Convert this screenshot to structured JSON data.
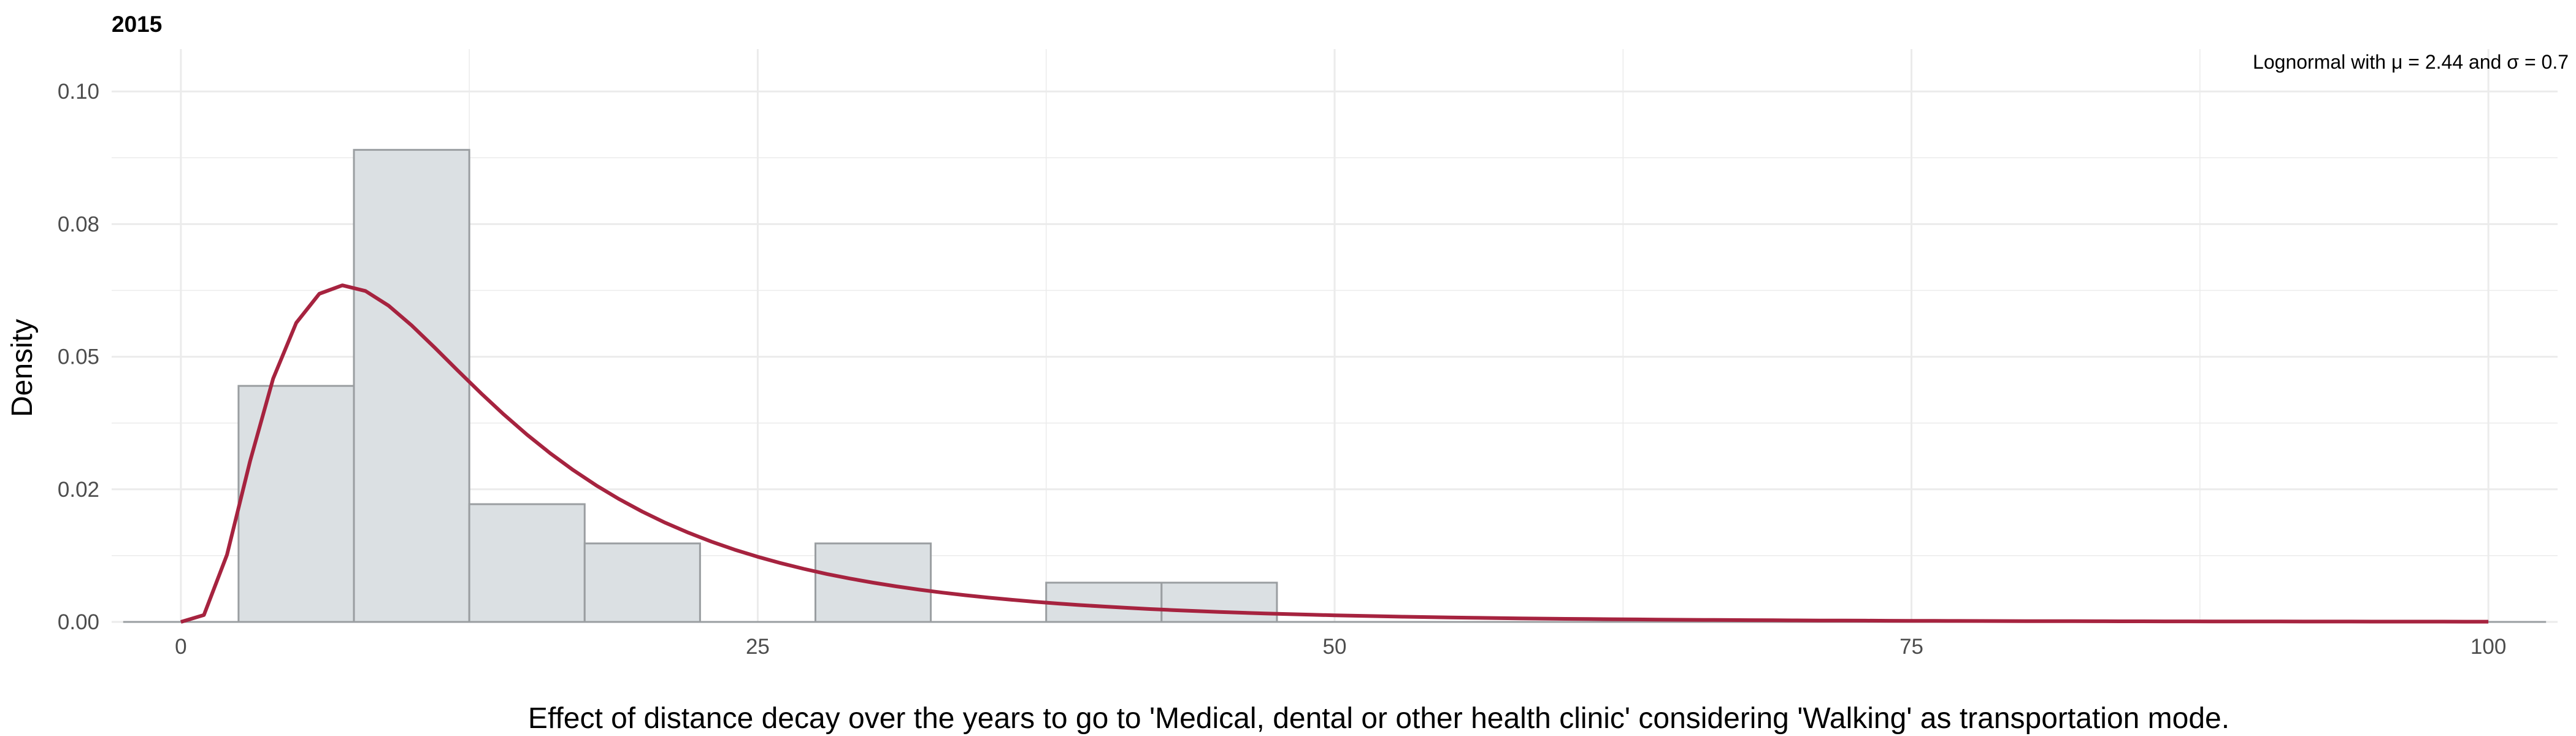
{
  "chart_data": {
    "type": "bar",
    "title": "2015",
    "xlabel": "Effect of distance decay over the years to go to 'Medical, dental or other health clinic' considering 'Walking' as transportation mode.",
    "ylabel": "Density",
    "annotation": "Lognormal with μ = 2.44 and σ = 0.7",
    "xlim": [
      -3,
      103
    ],
    "ylim": [
      0,
      0.108
    ],
    "x_ticks": [
      0,
      25,
      50,
      75,
      100
    ],
    "x_tick_labels": [
      "0",
      "25",
      "50",
      "75",
      "100"
    ],
    "y_ticks": [
      0.0,
      0.025,
      0.05,
      0.075,
      0.1
    ],
    "y_tick_labels": [
      "0.00",
      "0.02",
      "0.05",
      "0.08",
      "0.10"
    ],
    "grid": true,
    "bins": [
      {
        "x0": 2.5,
        "x1": 7.5,
        "density": 0.0445
      },
      {
        "x0": 7.5,
        "x1": 12.5,
        "density": 0.089
      },
      {
        "x0": 12.5,
        "x1": 17.5,
        "density": 0.0222
      },
      {
        "x0": 17.5,
        "x1": 22.5,
        "density": 0.0148
      },
      {
        "x0": 22.5,
        "x1": 27.5,
        "density": 0.0
      },
      {
        "x0": 27.5,
        "x1": 32.5,
        "density": 0.0148
      },
      {
        "x0": 32.5,
        "x1": 37.5,
        "density": 0.0
      },
      {
        "x0": 37.5,
        "x1": 42.5,
        "density": 0.0074
      },
      {
        "x0": 42.5,
        "x1": 47.5,
        "density": 0.0074
      }
    ],
    "density_curve": {
      "distribution": "lognormal",
      "mu": 2.44,
      "sigma": 0.7,
      "x_range": [
        0,
        100
      ]
    },
    "colors": {
      "bar_fill": "#dbe0e3",
      "bar_stroke": "#9a9ea1",
      "curve": "#a6233f",
      "grid": "#ebebeb",
      "baseline": "#9a9ea1"
    }
  }
}
